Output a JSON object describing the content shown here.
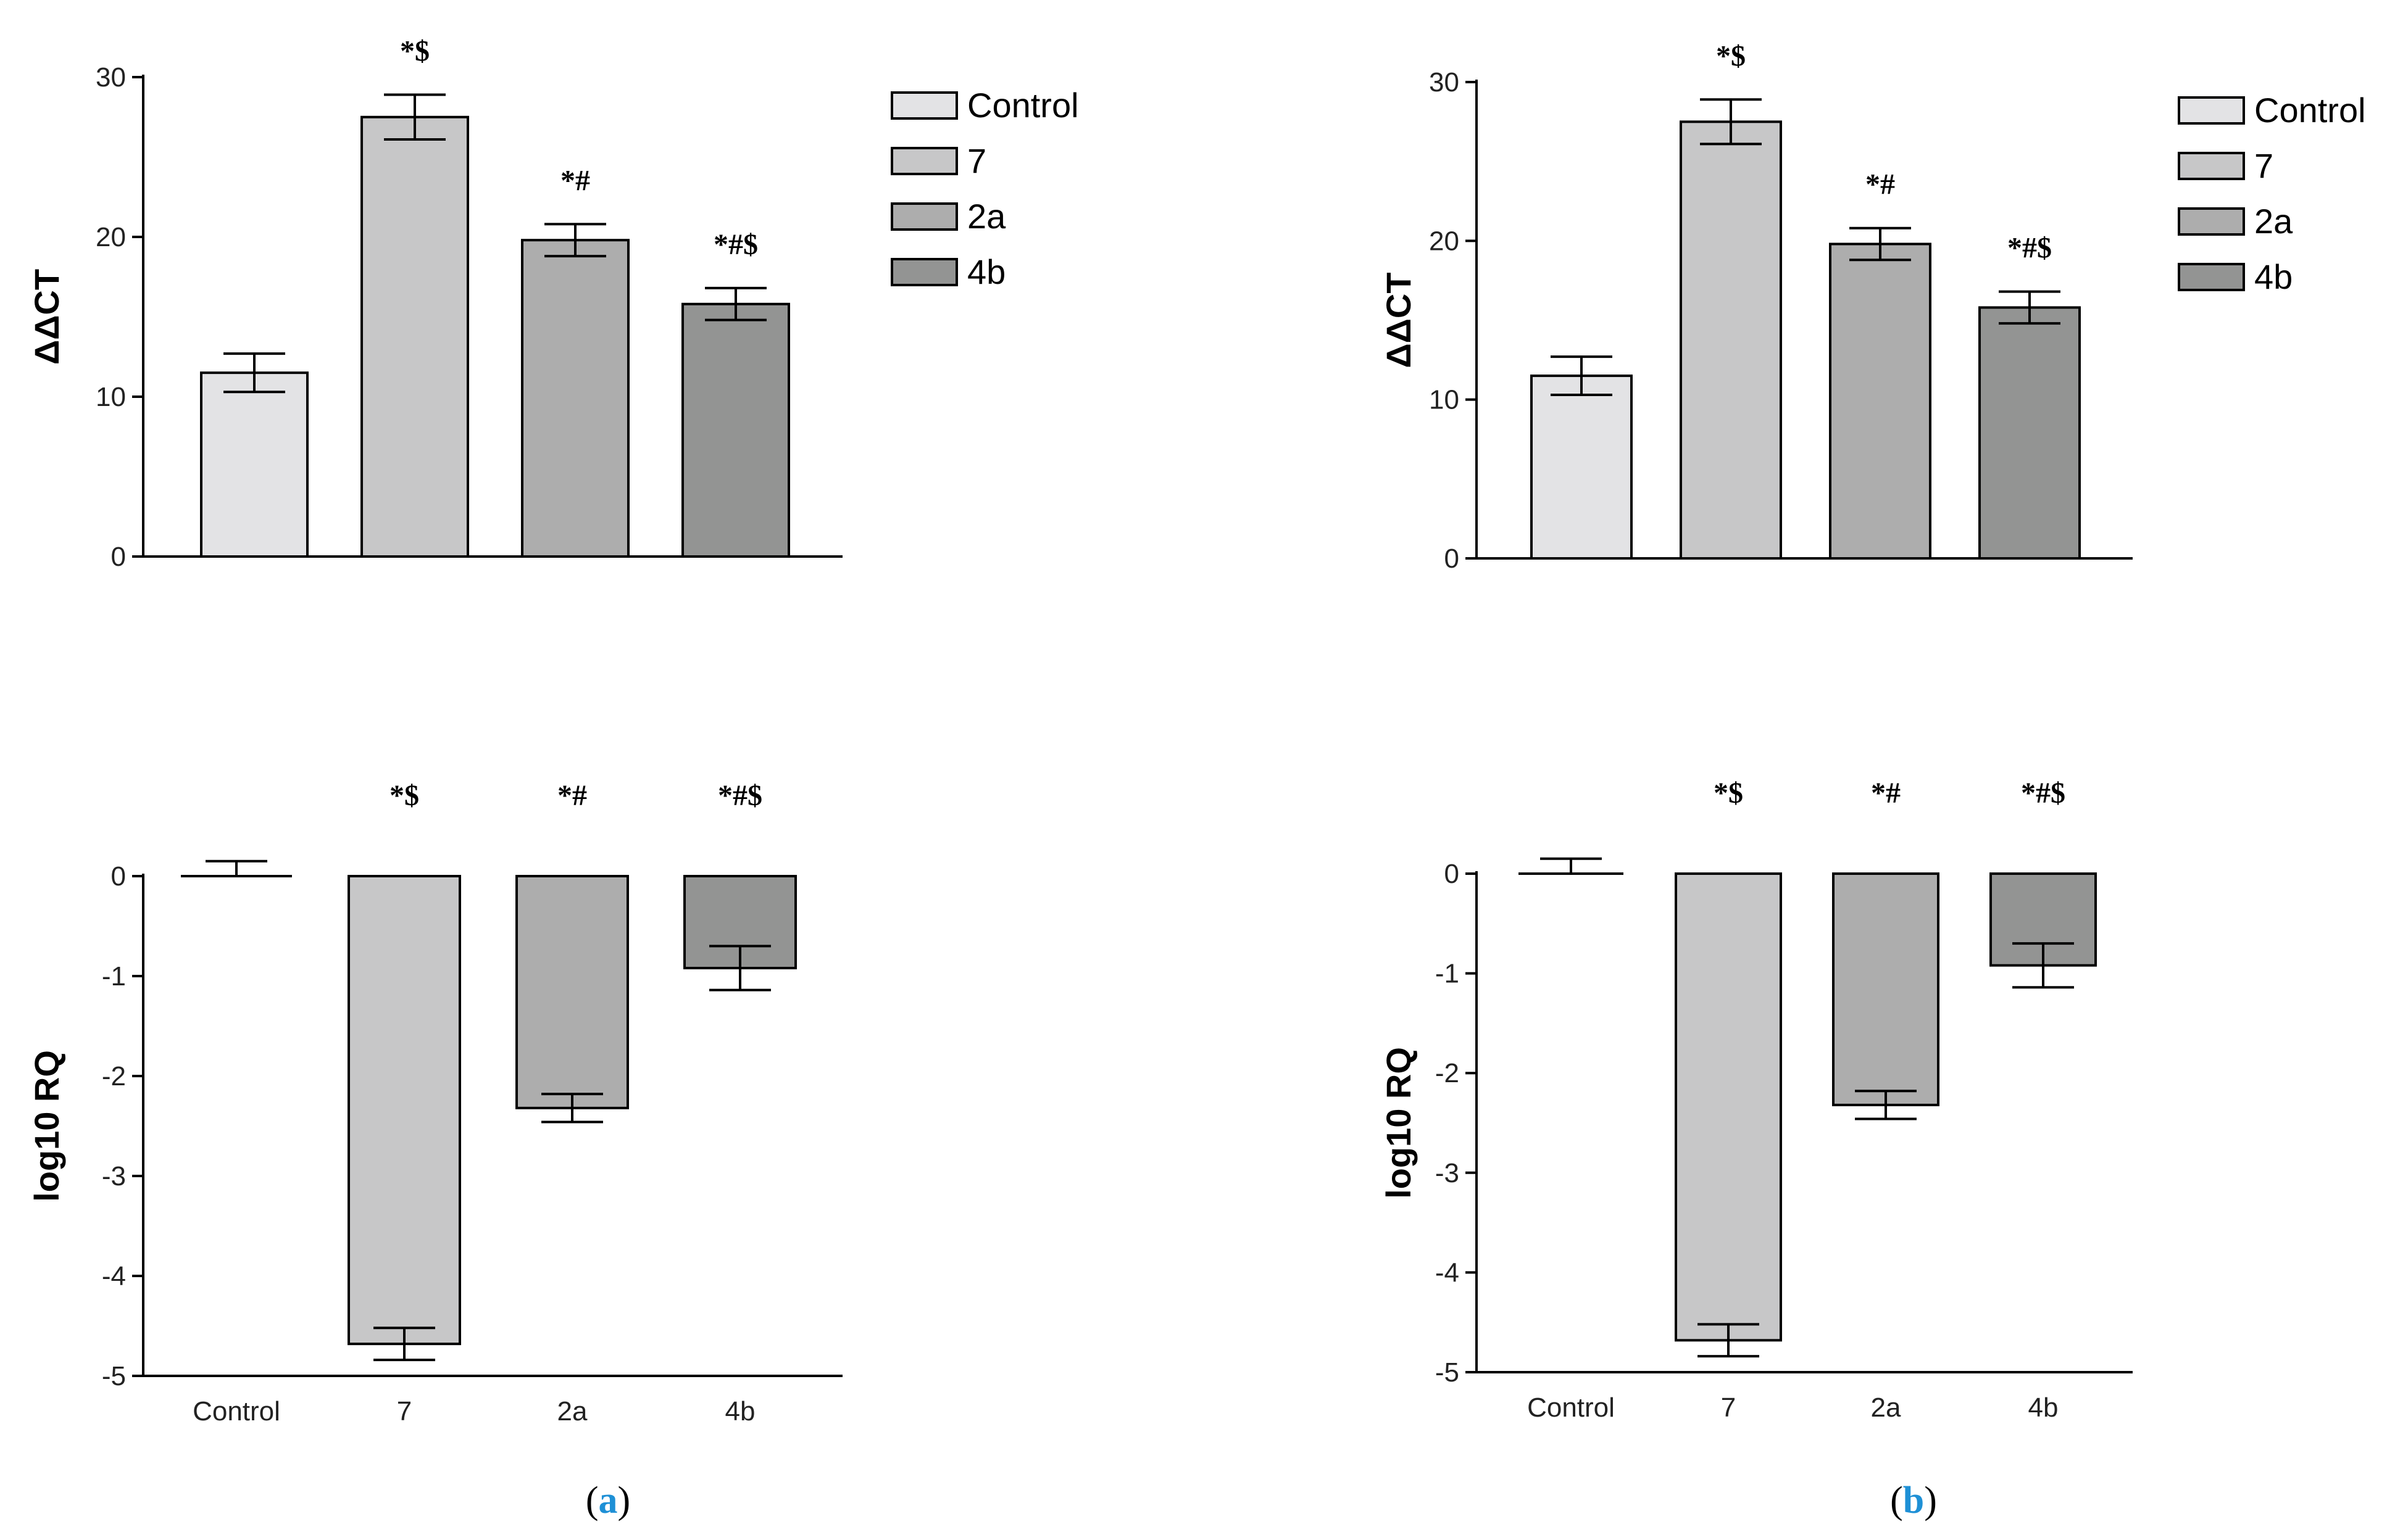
{
  "colors": {
    "Control": "#e3e3e5",
    "7": "#c7c7c8",
    "2a": "#adadad",
    "4b": "#939493",
    "caption_accent": "#1e90d6"
  },
  "captions": {
    "a": "a",
    "b": "b"
  },
  "chart_data": [
    {
      "id": "a-top",
      "type": "bar",
      "panel": "a",
      "categories": [
        "Control",
        "7",
        "2a",
        "4b"
      ],
      "values": [
        11.5,
        27.5,
        19.8,
        15.8
      ],
      "errors": [
        1.2,
        1.4,
        1.0,
        1.0
      ],
      "annotations": [
        "",
        "*$",
        "*#",
        "*#$"
      ],
      "ylabel": "ΔΔCT",
      "ylim": [
        0,
        30
      ],
      "yticks": [
        0,
        10,
        20,
        30
      ],
      "show_x_labels": false,
      "legend": [
        "Control",
        "7",
        "2a",
        "4b"
      ],
      "legend_position": "right"
    },
    {
      "id": "a-bottom",
      "type": "bar",
      "panel": "a",
      "categories": [
        "Control",
        "7",
        "2a",
        "4b"
      ],
      "values": [
        0,
        -4.68,
        -2.32,
        -0.92
      ],
      "errors": [
        0.15,
        0.16,
        0.14,
        0.22
      ],
      "annotations": [
        "",
        "*$",
        "*#",
        "*#$"
      ],
      "ylabel": "log10 RQ",
      "ylim": [
        -5,
        0
      ],
      "yticks": [
        0,
        -1,
        -2,
        -3,
        -4,
        -5
      ],
      "show_x_labels": true
    },
    {
      "id": "b-top",
      "type": "bar",
      "panel": "b",
      "categories": [
        "Control",
        "7",
        "2a",
        "4b"
      ],
      "values": [
        11.5,
        27.5,
        19.8,
        15.8
      ],
      "errors": [
        1.2,
        1.4,
        1.0,
        1.0
      ],
      "annotations": [
        "",
        "*$",
        "*#",
        "*#$"
      ],
      "ylabel": "ΔΔCT",
      "ylim": [
        0,
        30
      ],
      "yticks": [
        0,
        10,
        20,
        30
      ],
      "show_x_labels": false,
      "legend": [
        "Control",
        "7",
        "2a",
        "4b"
      ],
      "legend_position": "right"
    },
    {
      "id": "b-bottom",
      "type": "bar",
      "panel": "b",
      "categories": [
        "Control",
        "7",
        "2a",
        "4b"
      ],
      "values": [
        0,
        -4.68,
        -2.32,
        -0.92
      ],
      "errors": [
        0.15,
        0.16,
        0.14,
        0.22
      ],
      "annotations": [
        "",
        "*$",
        "*#",
        "*#$"
      ],
      "ylabel": "log10 RQ",
      "ylim": [
        -5,
        0
      ],
      "yticks": [
        0,
        -1,
        -2,
        -3,
        -4,
        -5
      ],
      "show_x_labels": true
    }
  ]
}
